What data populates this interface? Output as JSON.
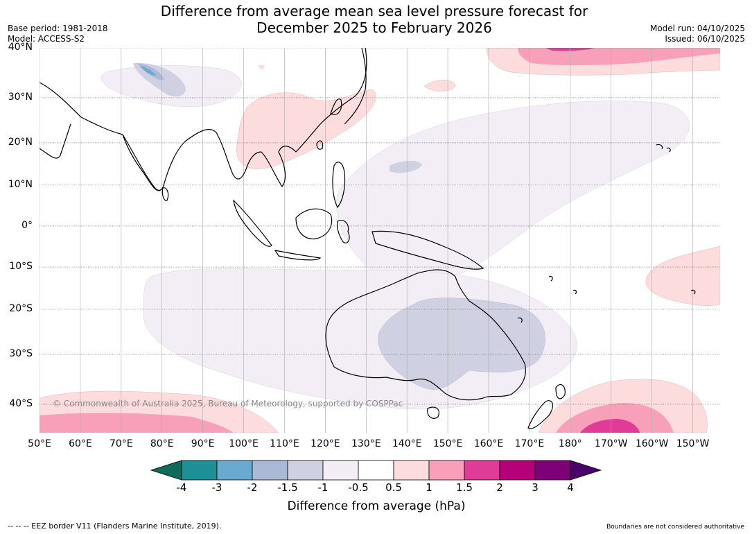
{
  "title": {
    "line1": "Difference from average mean sea level pressure forecast for",
    "line2": "December 2025 to February 2026"
  },
  "meta": {
    "base_period": "Base period: 1981-2018",
    "model": "Model: ACCESS-S2",
    "model_run": "Model run: 04/10/2025",
    "issued": "Issued: 06/10/2025"
  },
  "map": {
    "latitudes": [
      {
        "value": 40,
        "label": "40°N"
      },
      {
        "value": 30,
        "label": "30°N"
      },
      {
        "value": 20,
        "label": "20°N"
      },
      {
        "value": 10,
        "label": "10°N"
      },
      {
        "value": 0,
        "label": "0°"
      },
      {
        "value": -10,
        "label": "10°S"
      },
      {
        "value": -20,
        "label": "20°S"
      },
      {
        "value": -30,
        "label": "30°S"
      },
      {
        "value": -40,
        "label": "40°S"
      }
    ],
    "longitudes": [
      {
        "value": 50,
        "label": "50°E"
      },
      {
        "value": 60,
        "label": "60°E"
      },
      {
        "value": 70,
        "label": "70°E"
      },
      {
        "value": 80,
        "label": "80°E"
      },
      {
        "value": 90,
        "label": "90°E"
      },
      {
        "value": 100,
        "label": "100°E"
      },
      {
        "value": 110,
        "label": "110°E"
      },
      {
        "value": 120,
        "label": "120°E"
      },
      {
        "value": 130,
        "label": "130°E"
      },
      {
        "value": 140,
        "label": "140°E"
      },
      {
        "value": 150,
        "label": "150°E"
      },
      {
        "value": 160,
        "label": "160°E"
      },
      {
        "value": 170,
        "label": "170°E"
      },
      {
        "value": 180,
        "label": "180°"
      },
      {
        "value": 190,
        "label": "170°W"
      },
      {
        "value": 200,
        "label": "160°W"
      },
      {
        "value": 210,
        "label": "150°W"
      }
    ],
    "copyright": "© Commonwealth of Australia 2025, Bureau of Meteorology, supported by COSPPac"
  },
  "colorbar": {
    "title": "Difference from average (hPa)",
    "ticks": [
      "-4",
      "-3",
      "-2",
      "-1.5",
      "-1",
      "-0.5",
      "0.5",
      "1",
      "1.5",
      "2",
      "3",
      "4"
    ],
    "colors": {
      "lt_m4": "#0e6a5a",
      "m4_m3": "#1d9097",
      "m3_m2": "#6aaad0",
      "m2_m15": "#a9b9d6",
      "m15_m1": "#d0d0e3",
      "m1_m05": "#f3eef6",
      "m05_05": "#ffffff",
      "p05_1": "#fcdcdc",
      "p1_15": "#f8a0b9",
      "p15_2": "#e03b96",
      "p2_3": "#b6007a",
      "p3_4": "#7d0079",
      "gt_4": "#4a006a"
    }
  },
  "footer": {
    "eez": "--  --  -- EEZ border V11 (Flanders Marine Institute, 2019).",
    "boundaries": "Boundaries are not considered authoritative"
  }
}
